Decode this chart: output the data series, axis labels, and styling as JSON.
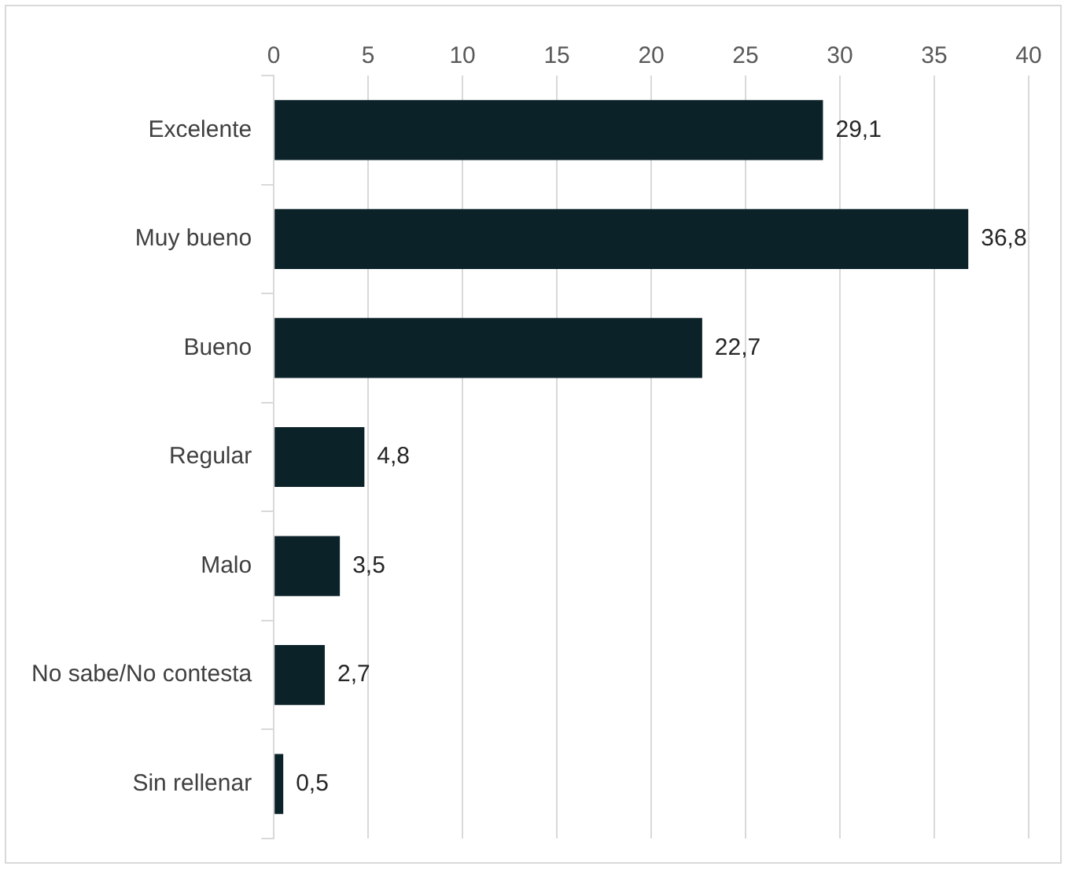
{
  "chart_data": {
    "type": "bar",
    "orientation": "horizontal",
    "categories": [
      "Excelente",
      "Muy bueno",
      "Bueno",
      "Regular",
      "Malo",
      "No sabe/No contesta",
      "Sin rellenar"
    ],
    "values": [
      29.1,
      36.8,
      22.7,
      4.8,
      3.5,
      2.7,
      0.5
    ],
    "value_labels": [
      "29,1",
      "36,8",
      "22,7",
      "4,8",
      "3,5",
      "2,7",
      "0,5"
    ],
    "color": "#0b2229",
    "xlim": [
      0,
      40
    ],
    "xticks": [
      0,
      5,
      10,
      15,
      20,
      25,
      30,
      35,
      40
    ],
    "grid": "x",
    "legend": false
  }
}
